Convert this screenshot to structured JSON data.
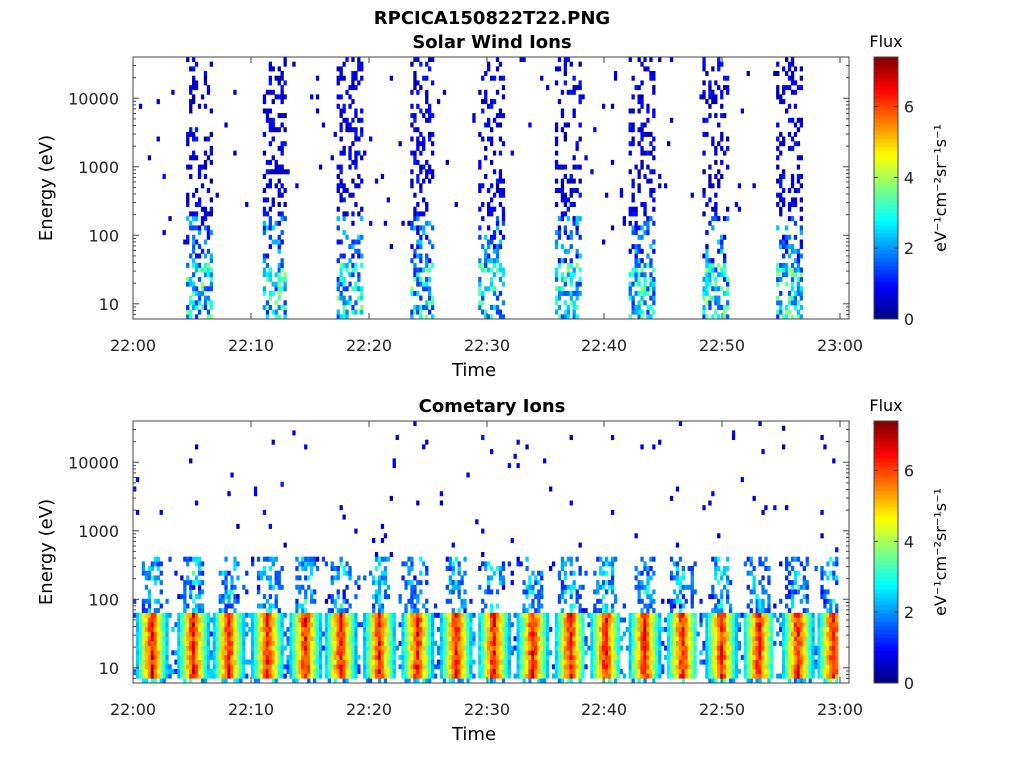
{
  "figure_title": "RPCICA150822T22.PNG",
  "chart_data": [
    {
      "type": "heatmap",
      "title": "Solar Wind Ions",
      "xlabel": "Time",
      "ylabel": "Energy (eV)",
      "x_ticks": [
        "22:00",
        "22:10",
        "22:20",
        "22:30",
        "22:40",
        "22:50",
        "23:00"
      ],
      "y_scale": "log",
      "y_ticks": [
        "10",
        "100",
        "1000",
        "10000"
      ],
      "ylim": [
        6,
        40000
      ],
      "colorbar": {
        "label": "eV⁻¹cm⁻²sr⁻¹s⁻¹",
        "title": "Flux",
        "ticks": [
          "0",
          "2",
          "4",
          "6"
        ],
        "range": [
          0,
          7.4
        ],
        "colormap": "jet"
      },
      "bursts_start_min": [
        4.5,
        10.8,
        17.2,
        23.3,
        29.2,
        35.7,
        42.0,
        48.3,
        54.5
      ],
      "burst_duration_min": 2.2,
      "typical_flux": {
        "low_energy_10_40eV": 3,
        "mid_energy_40_200eV": 1.5,
        "high_energy_200_30000eV": 0.6
      }
    },
    {
      "type": "heatmap",
      "title": "Cometary Ions",
      "xlabel": "Time",
      "ylabel": "Energy (eV)",
      "x_ticks": [
        "22:00",
        "22:10",
        "22:20",
        "22:30",
        "22:40",
        "22:50",
        "23:00"
      ],
      "y_scale": "log",
      "y_ticks": [
        "10",
        "100",
        "1000",
        "10000"
      ],
      "ylim": [
        6,
        40000
      ],
      "colorbar": {
        "label": "eV⁻¹cm⁻²sr⁻¹s⁻¹",
        "title": "Flux",
        "ticks": [
          "0",
          "2",
          "4",
          "6"
        ],
        "range": [
          0,
          7.4
        ],
        "colormap": "jet"
      },
      "peaks_min": [
        1.5,
        5.0,
        8.0,
        11.3,
        14.5,
        17.5,
        20.8,
        24.0,
        27.3,
        30.5,
        33.8,
        37.0,
        40.0,
        43.3,
        46.5,
        49.8,
        53.0,
        56.3,
        59.3
      ],
      "peak_energy_eV": [
        10,
        50
      ],
      "peak_flux": 6.8
    }
  ]
}
